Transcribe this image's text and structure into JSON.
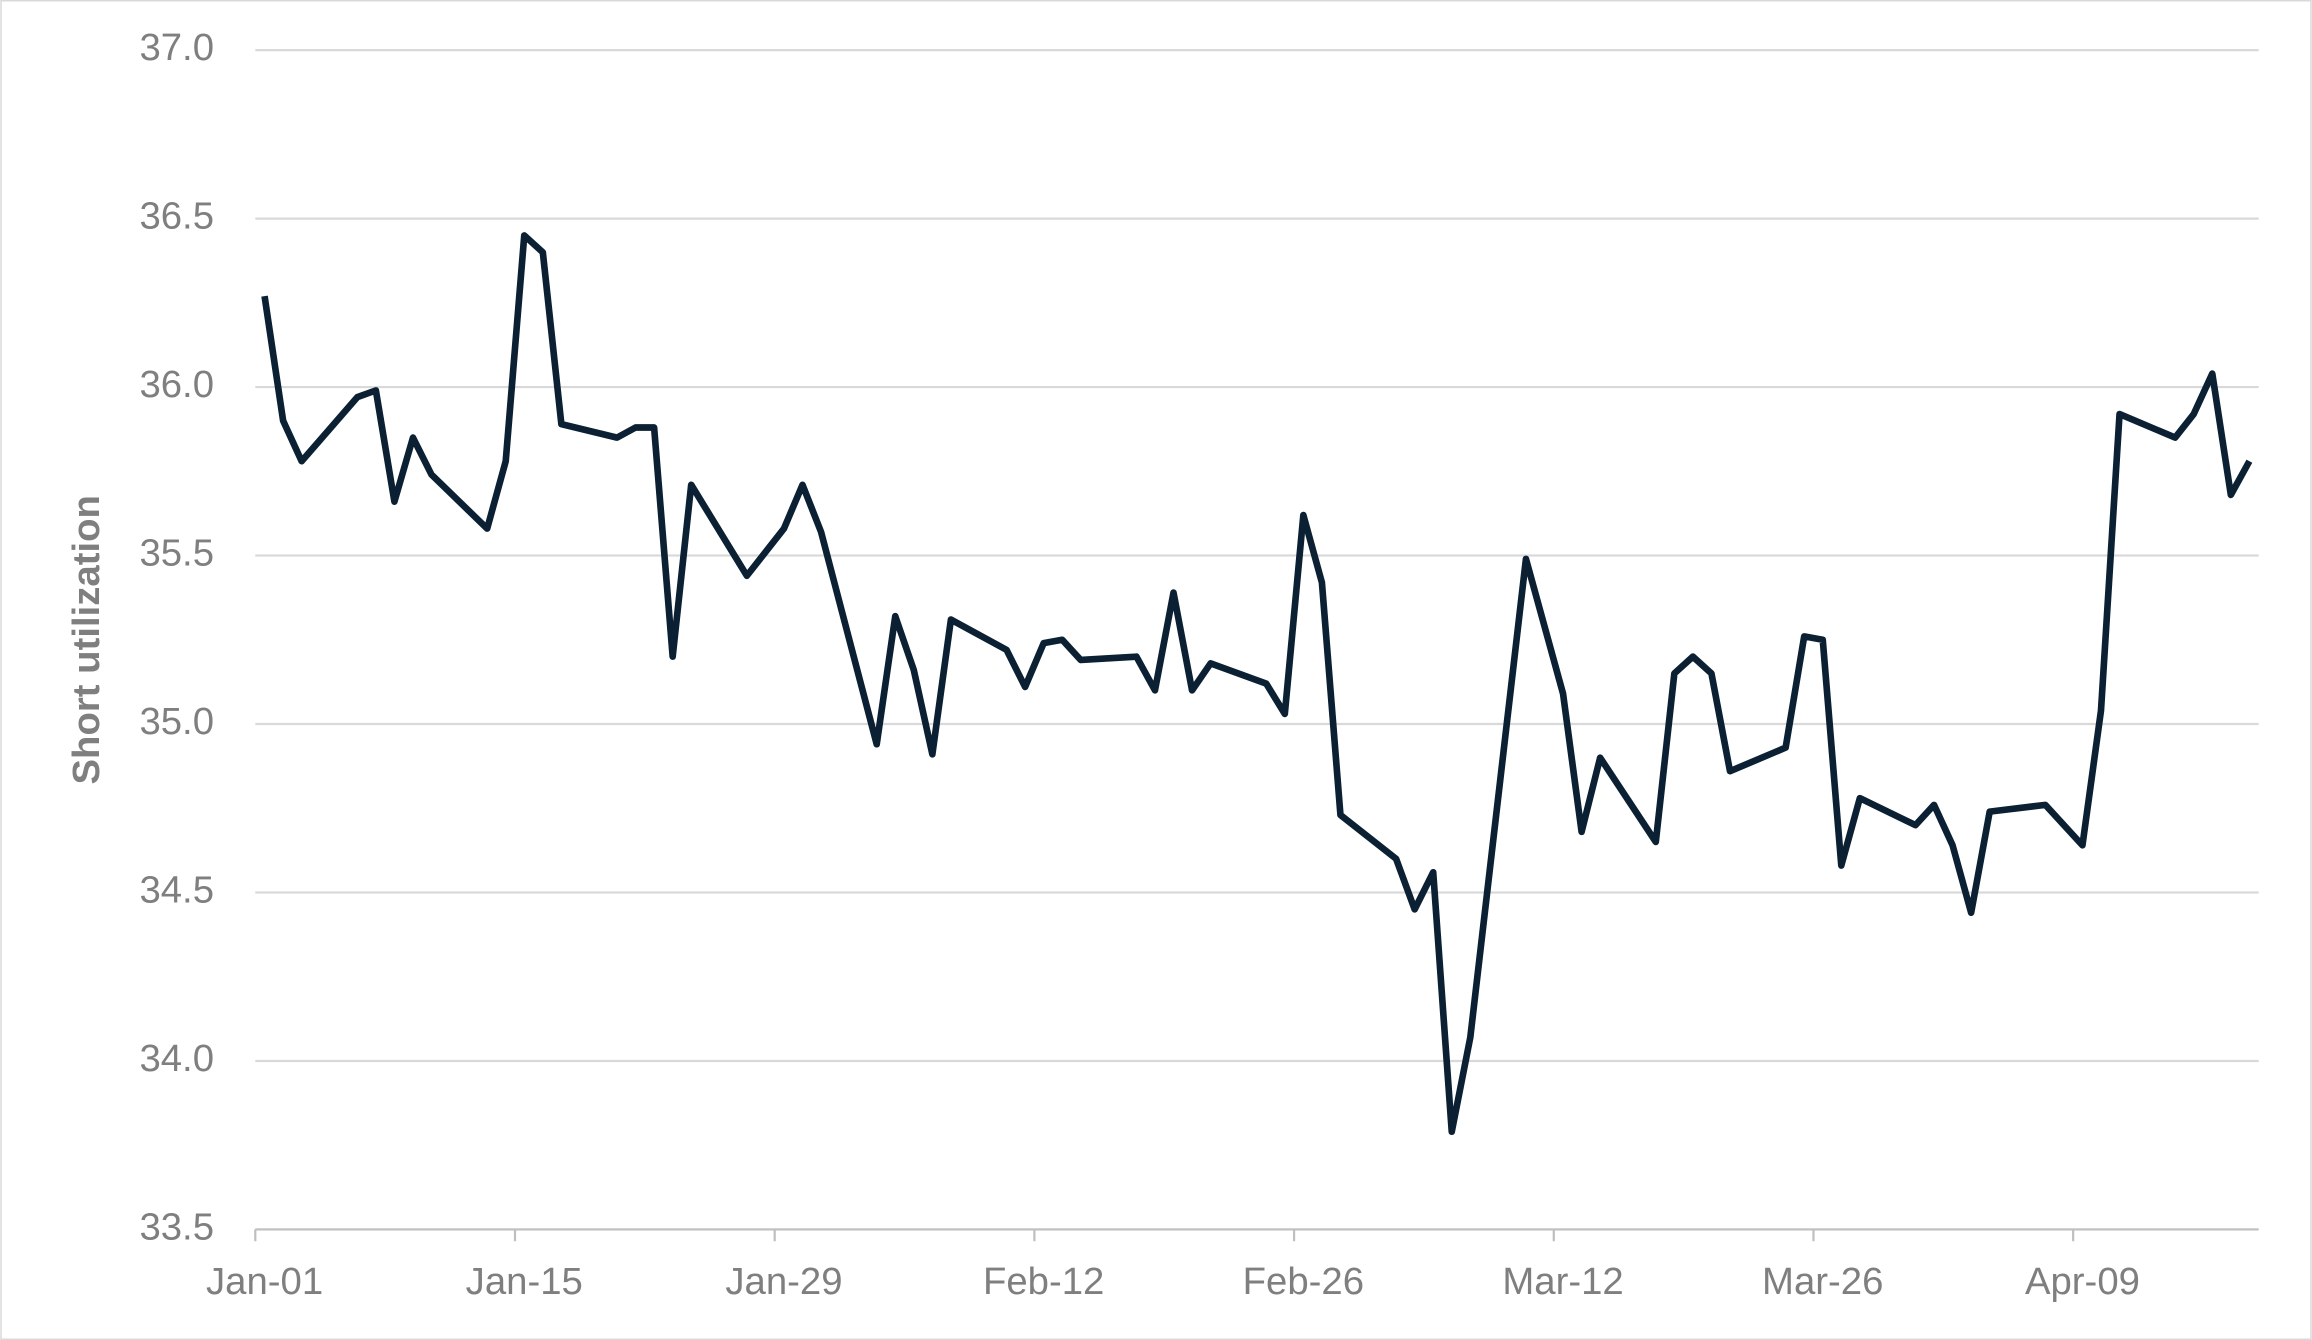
{
  "chart_data": {
    "type": "line",
    "y_label": "Short utilization",
    "x": [
      "01-01",
      "01-02",
      "01-03",
      "01-06",
      "01-07",
      "01-08",
      "01-09",
      "01-10",
      "01-13",
      "01-14",
      "01-15",
      "01-16",
      "01-17",
      "01-20",
      "01-21",
      "01-22",
      "01-23",
      "01-24",
      "01-27",
      "01-29",
      "01-30",
      "01-31",
      "02-03",
      "02-04",
      "02-05",
      "02-06",
      "02-07",
      "02-10",
      "02-11",
      "02-12",
      "02-13",
      "02-14",
      "02-17",
      "02-18",
      "02-19",
      "02-20",
      "02-21",
      "02-24",
      "02-25",
      "02-26",
      "02-27",
      "02-28",
      "03-03",
      "03-04",
      "03-05",
      "03-06",
      "03-07",
      "03-10",
      "03-12",
      "03-13",
      "03-14",
      "03-17",
      "03-18",
      "03-19",
      "03-20",
      "03-21",
      "03-24",
      "03-25",
      "03-26",
      "03-27",
      "03-28",
      "03-31",
      "04-01",
      "04-02",
      "04-03",
      "04-04",
      "04-07",
      "04-09",
      "04-10",
      "04-11",
      "04-14",
      "04-15",
      "04-16",
      "04-17",
      "04-18"
    ],
    "series": [
      {
        "name": "Short utilization",
        "color": "#0b2033",
        "values": [
          36.27,
          35.9,
          35.78,
          35.97,
          35.99,
          35.66,
          35.85,
          35.74,
          35.58,
          35.78,
          36.45,
          36.4,
          35.89,
          35.85,
          35.88,
          35.88,
          35.2,
          35.71,
          35.44,
          35.58,
          35.71,
          35.57,
          34.94,
          35.32,
          35.16,
          34.91,
          35.31,
          35.22,
          35.11,
          35.24,
          35.25,
          35.19,
          35.2,
          35.1,
          35.39,
          35.1,
          35.18,
          35.12,
          35.03,
          35.62,
          35.42,
          34.73,
          34.6,
          34.45,
          34.56,
          33.79,
          34.07,
          35.49,
          35.09,
          34.68,
          34.9,
          34.65,
          35.15,
          35.2,
          35.15,
          34.86,
          34.93,
          35.26,
          35.25,
          34.58,
          34.78,
          34.7,
          34.76,
          34.64,
          34.44,
          34.74,
          34.76,
          34.64,
          35.04,
          35.92,
          35.85,
          35.92,
          36.04,
          35.68,
          35.78
        ]
      }
    ],
    "xlim": [
      "01-01",
      "04-18"
    ],
    "xticks": [
      {
        "value": "01-01",
        "label": "Jan-01"
      },
      {
        "value": "01-15",
        "label": "Jan-15"
      },
      {
        "value": "01-29",
        "label": "Jan-29"
      },
      {
        "value": "02-12",
        "label": "Feb-12"
      },
      {
        "value": "02-26",
        "label": "Feb-26"
      },
      {
        "value": "03-12",
        "label": "Mar-12"
      },
      {
        "value": "03-26",
        "label": "Mar-26"
      },
      {
        "value": "04-09",
        "label": "Apr-09"
      }
    ],
    "ylim": [
      33.5,
      37.0
    ],
    "yticks": [
      {
        "value": 33.5,
        "label": "33.5"
      },
      {
        "value": 34,
        "label": "34.0"
      },
      {
        "value": 34.5,
        "label": "34.5"
      },
      {
        "value": 35,
        "label": "35.0"
      },
      {
        "value": 35.5,
        "label": "35.5"
      },
      {
        "value": 36,
        "label": "36.0"
      },
      {
        "value": 36.5,
        "label": "36.5"
      },
      {
        "value": 37,
        "label": "37.0"
      }
    ],
    "grid": true
  }
}
